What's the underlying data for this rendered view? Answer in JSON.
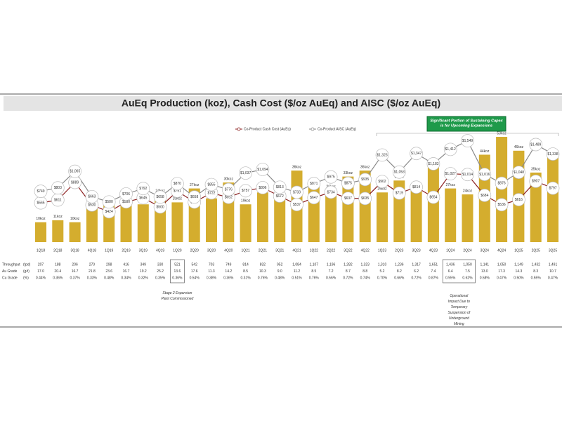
{
  "chart_data": {
    "type": "combo",
    "title": "AuEq Production (koz), Cash Cost ($/oz AuEq) and AISC ($/oz AuEq)",
    "categories": [
      "1Q18",
      "2Q18",
      "3Q18",
      "4Q18",
      "1Q19",
      "2Q19",
      "3Q19",
      "4Q19",
      "1Q20",
      "2Q20",
      "3Q20",
      "4Q20",
      "1Q21",
      "2Q21",
      "3Q21",
      "4Q21",
      "1Q22",
      "2Q22",
      "3Q22",
      "4Q22",
      "1Q23",
      "2Q23",
      "3Q23",
      "4Q23",
      "1Q24",
      "2Q24",
      "3Q24",
      "4Q24",
      "1Q25",
      "2Q25",
      "3Q25"
    ],
    "values": [
      10,
      11,
      10,
      17,
      20,
      19,
      19,
      24,
      20,
      27,
      22,
      30,
      19,
      25,
      24,
      36,
      29,
      26,
      33,
      36,
      25,
      31,
      26,
      39,
      27,
      24,
      44,
      53,
      46,
      35,
      44
    ],
    "value_labels": [
      "10koz",
      "11koz",
      "10koz",
      "17koz",
      "20koz",
      "19koz",
      "19koz",
      "24koz",
      "20koz",
      "27koz",
      "22koz",
      "30koz",
      "19koz",
      "25koz",
      "24koz",
      "36koz",
      "29koz",
      "26koz",
      "33koz",
      "36koz",
      "25koz",
      "31koz",
      "26koz",
      "39koz",
      "27koz",
      "24koz",
      "44koz",
      "53koz",
      "46koz",
      "35koz",
      "44koz"
    ],
    "color": "#d4ad2e",
    "series": [
      {
        "name": "Co-Product Cash Cost (AuEq)",
        "color": "#8b1e1e",
        "values": [
          565,
          611,
          889,
          530,
          424,
          580,
          645,
          500,
          751,
          577,
          722,
          652,
          757,
          806,
          672,
          537,
          647,
          734,
          637,
          635,
          902,
          719,
          814,
          654,
          1027,
          1014,
          684,
          536,
          616,
          907,
          797
        ],
        "value_labels": [
          "$565",
          "$611",
          "$889",
          "$530",
          "$424",
          "$580",
          "$645",
          "$500",
          "$751",
          "$577",
          "$722",
          "$652",
          "$757",
          "$806",
          "$672",
          "$537",
          "$647",
          "$734",
          "$637",
          "$635",
          "$902",
          "$719",
          "$814",
          "$654",
          "$1,027",
          "$1,014",
          "$684",
          "$536",
          "$616",
          "$907",
          "$797"
        ]
      },
      {
        "name": "Co-Product AISC (AuEq)",
        "color": "#8a8a8a",
        "values": [
          749,
          803,
          1065,
          663,
          580,
          706,
          792,
          658,
          870,
          658,
          855,
          776,
          1037,
          1094,
          813,
          733,
          871,
          975,
          875,
          935,
          1323,
          1053,
          1347,
          1183,
          1412,
          1549,
          1016,
          876,
          1048,
          1489,
          1338
        ],
        "value_labels": [
          "$749",
          "$803",
          "$1,065",
          "$663",
          "$580",
          "$706",
          "$792",
          "$658",
          "$870",
          "$658",
          "$855",
          "$776",
          "$1,037",
          "$1,094",
          "$813",
          "$733",
          "$871",
          "$975",
          "$875",
          "$935",
          "$1,323",
          "$1,053",
          "$1,347",
          "$1,183",
          "$1,412",
          "$1,549",
          "$1,016",
          "$876",
          "$1,048",
          "$1,489",
          "$1,338"
        ]
      }
    ],
    "callout": "Significant Portion of Sustaining Capex is for Upcoming Expansions",
    "annotations": [
      "Stage 2 Expansion Plant Commissioned",
      "Operational Impact Due to Temporary Suspension of Underground Mining"
    ],
    "table": {
      "rows": [
        {
          "label": "Throughput",
          "unit": "(tpd)",
          "values": [
            "207",
            "188",
            "206",
            "270",
            "298",
            "416",
            "349",
            "330",
            "521",
            "542",
            "703",
            "749",
            "814",
            "832",
            "952",
            "1,084",
            "1,107",
            "1,196",
            "1,282",
            "1,323",
            "1,310",
            "1,236",
            "1,317",
            "1,651",
            "1,436",
            "1,050",
            "1,141",
            "1,050",
            "1,149",
            "1,432",
            "1,491"
          ]
        },
        {
          "label": "Au Grade",
          "unit": "(g/t)",
          "values": [
            "17.0",
            "20.4",
            "16.7",
            "21.8",
            "23.6",
            "16.7",
            "19.2",
            "25.2",
            "13.6",
            "17.6",
            "11.3",
            "14.2",
            "8.5",
            "10.3",
            "9.0",
            "11.2",
            "8.5",
            "7.2",
            "8.7",
            "8.8",
            "5.2",
            "8.2",
            "6.2",
            "7.4",
            "6.4",
            "7.5",
            "13.0",
            "17.3",
            "14.3",
            "8.3",
            "10.7"
          ]
        },
        {
          "label": "Cu Grade",
          "unit": "(%)",
          "values": [
            "0.44%",
            "0.36%",
            "0.37%",
            "0.33%",
            "0.48%",
            "0.34%",
            "0.32%",
            "0.35%",
            "0.36%",
            "0.54%",
            "0.38%",
            "0.36%",
            "0.31%",
            "0.76%",
            "0.48%",
            "0.51%",
            "0.76%",
            "0.56%",
            "0.72%",
            "0.74%",
            "0.70%",
            "0.66%",
            "0.72%",
            "0.87%",
            "0.55%",
            "0.62%",
            "0.58%",
            "0.47%",
            "0.50%",
            "0.55%",
            "0.47%"
          ]
        }
      ]
    }
  }
}
